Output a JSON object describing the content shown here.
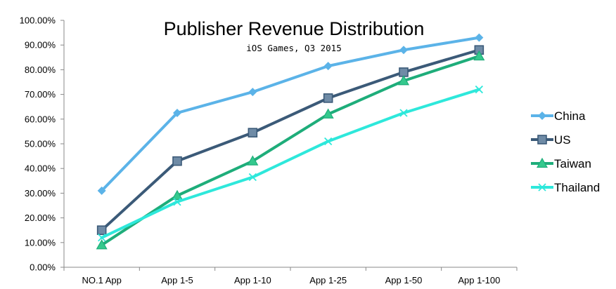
{
  "chart_data": {
    "type": "line",
    "title": "Publisher Revenue Distribution",
    "subtitle": "iOS Games, Q3 2015",
    "xlabel": "",
    "ylabel": "",
    "categories": [
      "NO.1 App",
      "App 1-5",
      "App 1-10",
      "App 1-25",
      "App 1-50",
      "App 1-100"
    ],
    "ylim": [
      0,
      100
    ],
    "yticks": [
      0,
      10,
      20,
      30,
      40,
      50,
      60,
      70,
      80,
      90,
      100
    ],
    "ytick_labels": [
      "0.00%",
      "10.00%",
      "20.00%",
      "30.00%",
      "40.00%",
      "50.00%",
      "60.00%",
      "70.00%",
      "80.00%",
      "90.00%",
      "100.00%"
    ],
    "grid": false,
    "legend_position": "right",
    "series": [
      {
        "name": "China",
        "color": "#5BB3E8",
        "marker": "diamond",
        "values": [
          31,
          62.5,
          71,
          81.5,
          88,
          93
        ]
      },
      {
        "name": "US",
        "color": "#3B5A78",
        "marker": "square",
        "values": [
          15,
          43,
          54.5,
          68.5,
          79,
          88
        ]
      },
      {
        "name": "Taiwan",
        "color": "#1EAD7A",
        "marker": "triangle",
        "values": [
          9,
          29,
          43,
          62,
          75.5,
          85.5
        ]
      },
      {
        "name": "Thailand",
        "color": "#2EE8DB",
        "marker": "x",
        "values": [
          12,
          26.5,
          36.5,
          51,
          62.5,
          72
        ]
      }
    ]
  }
}
